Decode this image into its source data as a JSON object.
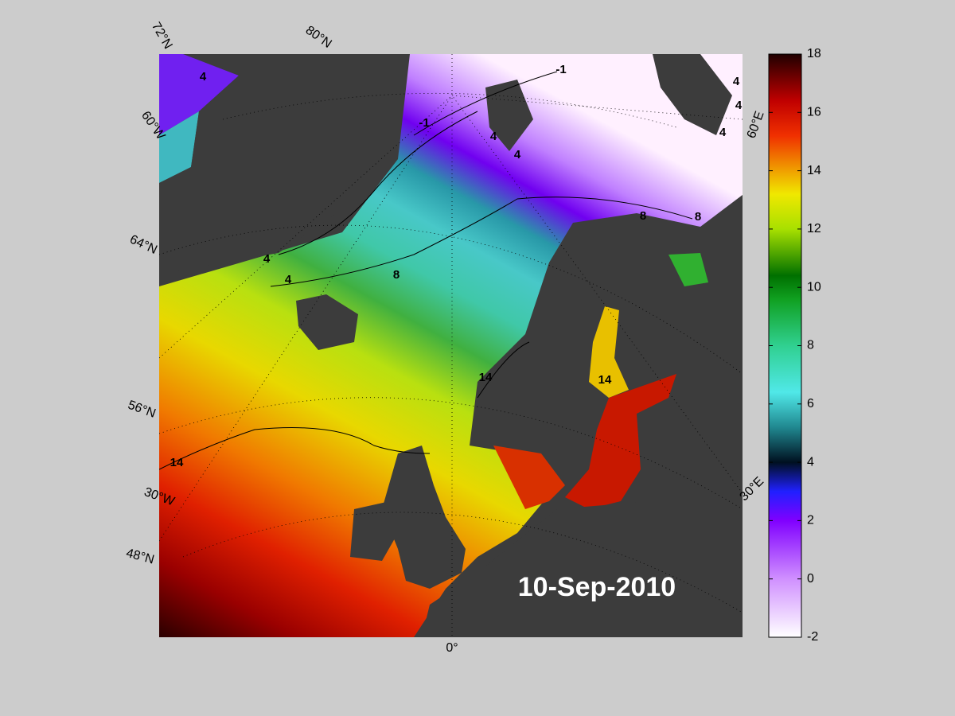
{
  "map": {
    "date": "10-Sep-2010",
    "graticule_labels": [
      "72°N",
      "80°N",
      "60°W",
      "64°N",
      "56°N",
      "30°W",
      "48°N",
      "0°",
      "30°E",
      "60°E"
    ],
    "contour_labels": [
      4,
      4,
      4,
      4,
      4,
      4,
      4,
      4,
      -1,
      -1,
      8,
      8,
      8,
      14,
      14,
      14
    ],
    "colorbar": {
      "lim": [
        -2,
        18
      ],
      "ticks": [
        -2,
        0,
        2,
        4,
        6,
        8,
        10,
        12,
        14,
        16,
        18
      ]
    }
  }
}
